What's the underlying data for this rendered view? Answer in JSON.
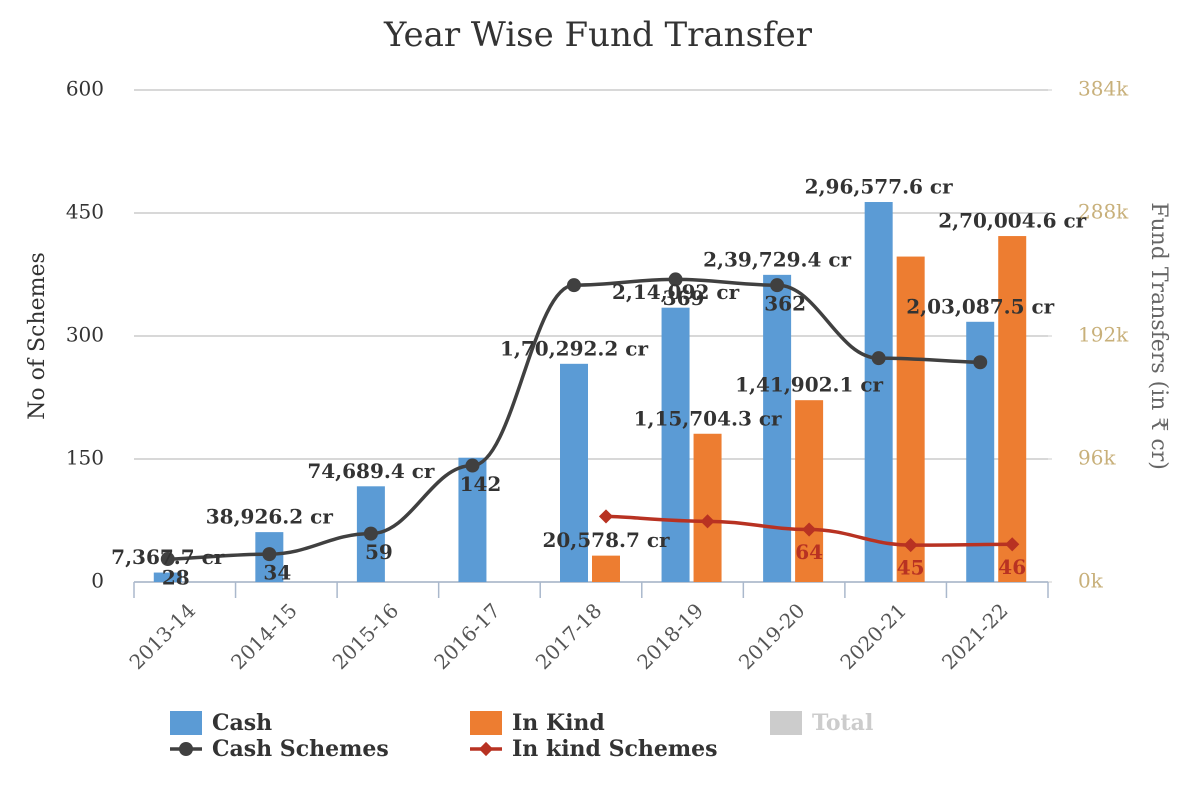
{
  "chart_data": {
    "type": "combo",
    "title": "Year Wise Fund Transfer",
    "y_label": "No of Schemes",
    "y2_label": "Fund Transfers (in ₹ cr)",
    "categories": [
      "2013-14",
      "2014-15",
      "2015-16",
      "2016-17",
      "2017-18",
      "2018-19",
      "2019-20",
      "2020-21",
      "2021-22"
    ],
    "ylim": [
      0,
      600
    ],
    "yticks": [
      0,
      150,
      300,
      450,
      600
    ],
    "y2lim": [
      0,
      384000
    ],
    "y2ticks": [
      {
        "value": 0,
        "label": "0k"
      },
      {
        "value": 96000,
        "label": "96k"
      },
      {
        "value": 192000,
        "label": "192k"
      },
      {
        "value": 288000,
        "label": "288k"
      },
      {
        "value": 384000,
        "label": "384k"
      }
    ],
    "grid": true,
    "legend": "bottom",
    "series": [
      {
        "name": "Cash",
        "type": "bar",
        "axis": "y2",
        "color": "#5b9bd5",
        "values": [
          7367.7,
          38926.2,
          74689.4,
          97000,
          170292.2,
          214092,
          239729.4,
          296577.6,
          203087.5
        ],
        "value_labels": [
          "7,367.7 cr",
          "38,926.2 cr",
          "74,689.4 cr",
          null,
          "1,70,292.2 cr",
          "2,14,092 cr",
          "2,39,729.4 cr",
          "2,96,577.6 cr",
          "2,03,087.5 cr"
        ]
      },
      {
        "name": "In Kind",
        "type": "bar",
        "axis": "y2",
        "color": "#ed7d31",
        "values": [
          null,
          null,
          null,
          null,
          20578.7,
          115704.3,
          141902.1,
          254000,
          270004.6
        ],
        "value_labels": [
          null,
          null,
          null,
          null,
          "20,578.7 cr",
          "1,15,704.3 cr",
          "1,41,902.1 cr",
          null,
          "2,70,004.6 cr"
        ]
      },
      {
        "name": "Total",
        "type": "bar",
        "axis": "y2",
        "color": "#cccccc",
        "visible": false,
        "values": [
          null,
          null,
          null,
          null,
          null,
          null,
          null,
          null,
          null
        ]
      },
      {
        "name": "Cash Schemes",
        "type": "line",
        "color": "#404040",
        "marker": "circle",
        "values": [
          28,
          34,
          59,
          142,
          362,
          369,
          362,
          273,
          268
        ],
        "value_labels": [
          "28",
          "34",
          "59",
          "142",
          null,
          "369",
          "362",
          null,
          null
        ]
      },
      {
        "name": "In kind Schemes",
        "type": "line",
        "color": "#b83222",
        "marker": "diamond",
        "values": [
          null,
          null,
          null,
          null,
          80,
          74,
          64,
          45,
          46
        ],
        "value_labels": [
          null,
          null,
          null,
          null,
          null,
          null,
          "64",
          "45",
          "46"
        ]
      }
    ]
  }
}
